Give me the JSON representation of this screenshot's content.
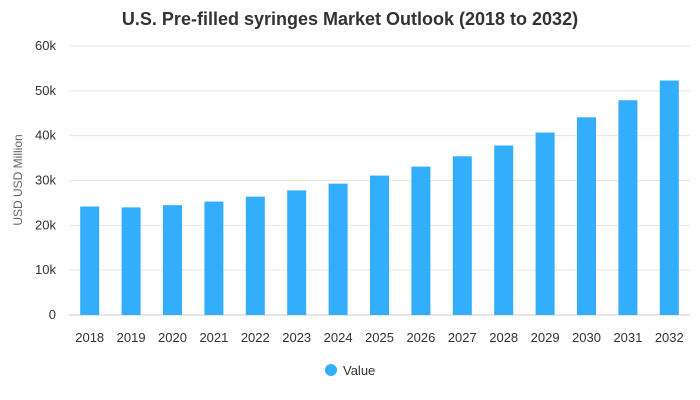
{
  "chart_data": {
    "type": "bar",
    "title": "U.S. Pre-filled syringes Market Outlook (2018 to 2032)",
    "xlabel": "",
    "ylabel": "USD USD Million",
    "ylim": [
      0,
      60000
    ],
    "yticks": [
      0,
      10000,
      20000,
      30000,
      40000,
      50000,
      60000
    ],
    "ytick_labels": [
      "0",
      "10k",
      "20k",
      "30k",
      "40k",
      "50k",
      "60k"
    ],
    "categories": [
      "2018",
      "2019",
      "2020",
      "2021",
      "2022",
      "2023",
      "2024",
      "2025",
      "2026",
      "2027",
      "2028",
      "2029",
      "2030",
      "2031",
      "2032"
    ],
    "series": [
      {
        "name": "Value",
        "color": "#33aefc",
        "values": [
          24200,
          24000,
          24500,
          25300,
          26400,
          27800,
          29300,
          31100,
          33100,
          35400,
          37800,
          40700,
          44100,
          47900,
          52300
        ]
      }
    ],
    "grid": true,
    "legend": "bottom-center"
  }
}
